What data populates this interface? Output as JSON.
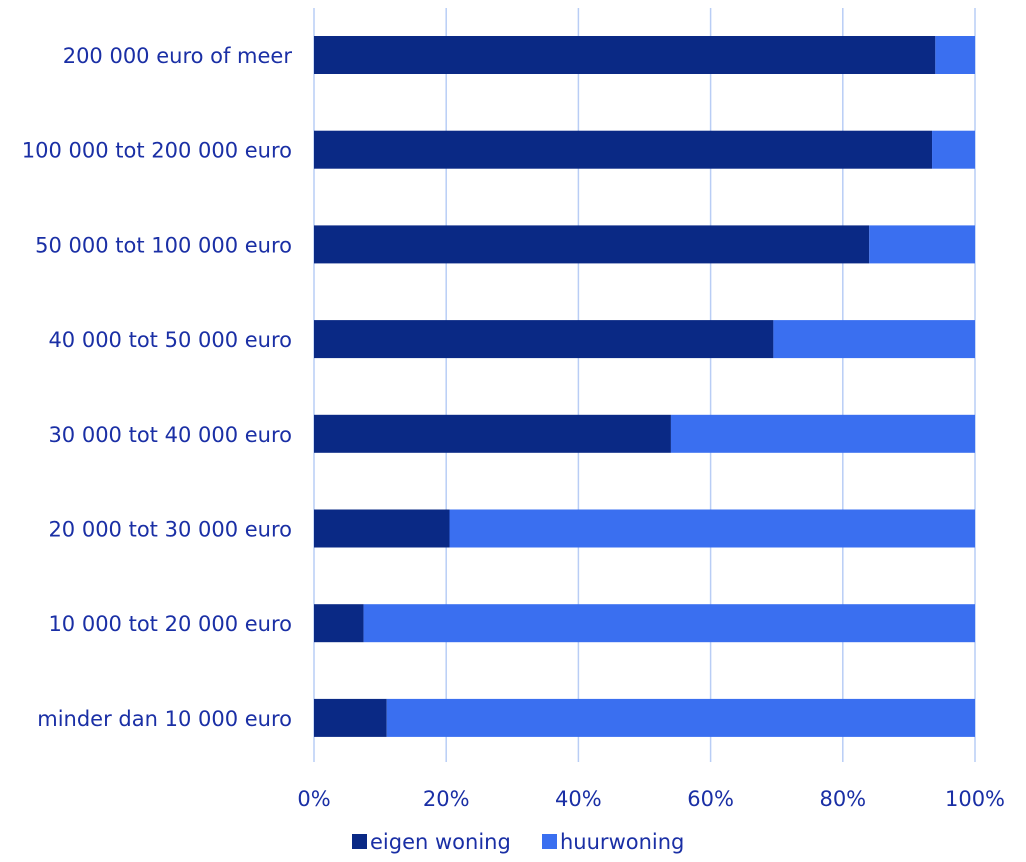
{
  "chart_data": {
    "type": "bar",
    "orientation": "horizontal",
    "stacked": true,
    "percent_stacked": true,
    "categories": [
      "200 000 euro of meer",
      "100 000 tot 200 000 euro",
      "50 000 tot 100 000 euro",
      "40 000 tot 50 000 euro",
      "30 000 tot 40 000 euro",
      "20 000 tot 30 000 euro",
      "10 000 tot 20 000 euro",
      "minder dan 10 000 euro"
    ],
    "series": [
      {
        "name": "eigen woning",
        "color": "#0a2985",
        "values": [
          94,
          93.5,
          84,
          69.5,
          54,
          20.5,
          7.5,
          11
        ]
      },
      {
        "name": "huurwoning",
        "color": "#3a6ff0",
        "values": [
          6,
          6.5,
          16,
          30.5,
          46,
          79.5,
          92.5,
          89
        ]
      }
    ],
    "x_ticks": [
      "0%",
      "20%",
      "40%",
      "60%",
      "80%",
      "100%"
    ],
    "xlim": [
      0,
      100
    ],
    "grid": "vertical",
    "legend_position": "bottom",
    "title": "",
    "xlabel": "",
    "ylabel": ""
  }
}
